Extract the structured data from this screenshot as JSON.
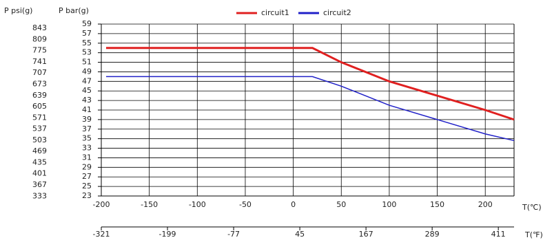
{
  "chart_data": {
    "type": "line",
    "y2_label": "P psi(g)",
    "y_label": "P bar(g)",
    "x_label": "T(℃)",
    "x2_label": "T(℉)",
    "x": [
      -195,
      20,
      50,
      100,
      150,
      200,
      230
    ],
    "series": [
      {
        "name": "circuit1",
        "color": "#e02020",
        "values": [
          54,
          54,
          51,
          47,
          44,
          41,
          39
        ]
      },
      {
        "name": "circuit2",
        "color": "#2020c8",
        "values": [
          48,
          48,
          46,
          42,
          39,
          36,
          34.6
        ]
      }
    ],
    "xlim": [
      -200,
      230
    ],
    "xticks": [
      -200,
      -150,
      -100,
      -50,
      0,
      50,
      100,
      150,
      200
    ],
    "x2lim": [
      -321,
      440
    ],
    "x2ticks": [
      -321,
      -199,
      -77,
      45,
      167,
      289,
      411
    ],
    "ylim": [
      23,
      59
    ],
    "yticks": [
      23,
      25,
      27,
      29,
      31,
      33,
      35,
      37,
      39,
      41,
      43,
      45,
      47,
      49,
      51,
      53,
      55,
      57,
      59
    ],
    "y2lim": [
      333.6,
      855.7
    ],
    "y2ticks": [
      333,
      367,
      401,
      435,
      469,
      503,
      537,
      571,
      605,
      639,
      673,
      707,
      741,
      775,
      809,
      843
    ],
    "grid": true
  }
}
